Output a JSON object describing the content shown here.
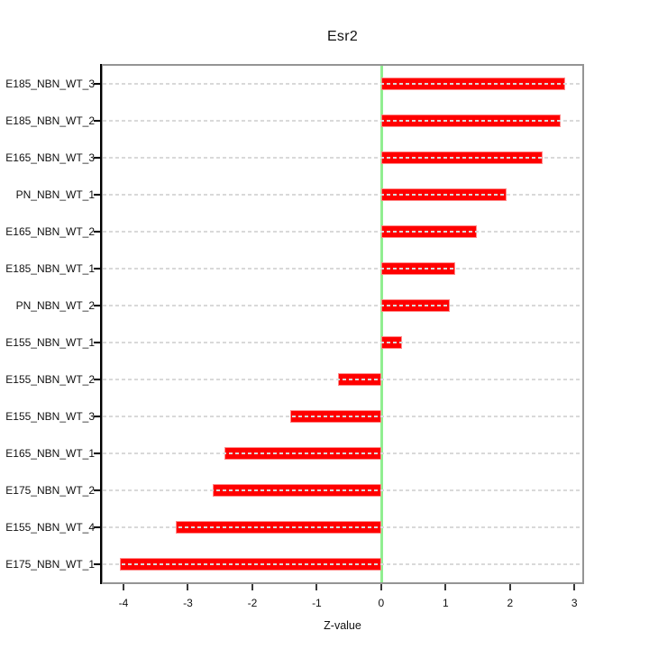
{
  "window": {
    "background": "#ffffff"
  },
  "chart_data": {
    "type": "bar",
    "orientation": "horizontal",
    "title": "Esr2",
    "xlabel": "Z-value",
    "ylabel": "",
    "categories": [
      "E185_NBN_WT_3",
      "E185_NBN_WT_2",
      "E165_NBN_WT_3",
      "PN_NBN_WT_1",
      "E165_NBN_WT_2",
      "E185_NBN_WT_1",
      "PN_NBN_WT_2",
      "E155_NBN_WT_1",
      "E155_NBN_WT_2",
      "E155_NBN_WT_3",
      "E165_NBN_WT_1",
      "E175_NBN_WT_2",
      "E155_NBN_WT_4",
      "E175_NBN_WT_1"
    ],
    "values": [
      2.85,
      2.79,
      2.5,
      1.95,
      1.48,
      1.15,
      1.06,
      0.32,
      -0.67,
      -1.41,
      -2.43,
      -2.62,
      -3.19,
      -4.06
    ],
    "xlim": [
      -4.35,
      3.15
    ],
    "xticks": [
      "-4",
      "-3",
      "-2",
      "-1",
      "0",
      "1",
      "2",
      "3"
    ],
    "xtick_values": [
      -4,
      -3,
      -2,
      -1,
      0,
      1,
      2,
      3
    ],
    "grid": "horizontal dashed line at each bar, drawn over bars",
    "legend": "none",
    "colors": {
      "bar_fill": "#ff0000",
      "bar_border": "#ff8a8a",
      "zero_line": "#90ee90",
      "gridline": "#d9d9d9",
      "box_border": "#949494",
      "axis_line": "#000000",
      "text": "#111111",
      "background": "#ffffff"
    }
  }
}
